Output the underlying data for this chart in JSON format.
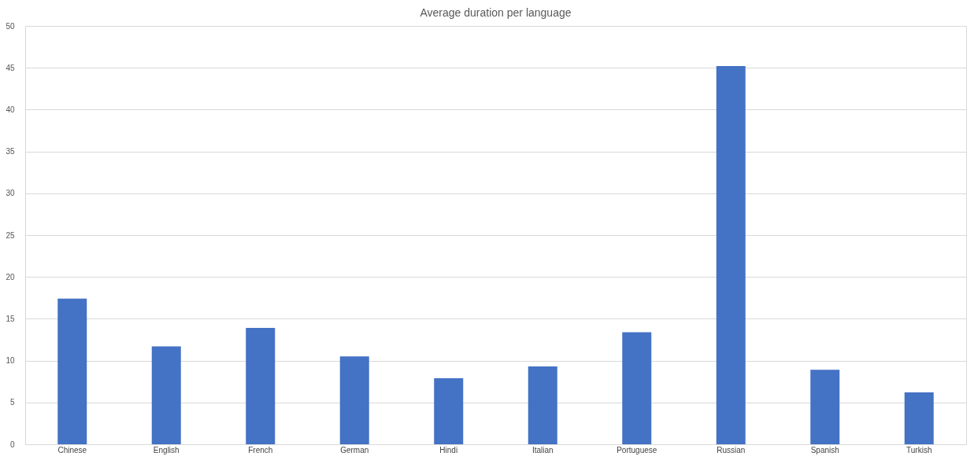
{
  "chart_data": {
    "type": "bar",
    "title": "Average duration per language",
    "categories": [
      "Chinese",
      "English",
      "French",
      "German",
      "Hindi",
      "Italian",
      "Portuguese",
      "Russian",
      "Spanish",
      "Turkish"
    ],
    "values": [
      17.4,
      11.7,
      13.9,
      10.5,
      7.9,
      9.3,
      13.4,
      45.2,
      8.9,
      6.2
    ],
    "color": "#4472c4",
    "ylim": [
      0,
      50
    ],
    "yticks": [
      0,
      5,
      10,
      15,
      20,
      25,
      30,
      35,
      40,
      45,
      50
    ],
    "grid": "y"
  }
}
